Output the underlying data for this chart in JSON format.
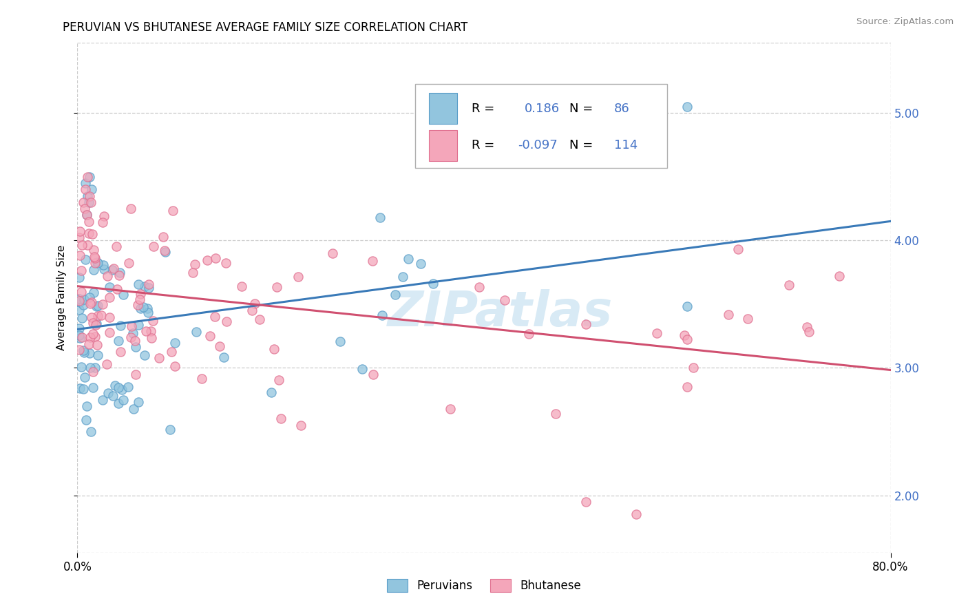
{
  "title": "PERUVIAN VS BHUTANESE AVERAGE FAMILY SIZE CORRELATION CHART",
  "source_text": "Source: ZipAtlas.com",
  "ylabel": "Average Family Size",
  "xlim": [
    0.0,
    0.8
  ],
  "ylim": [
    1.55,
    5.55
  ],
  "yticks": [
    2.0,
    3.0,
    4.0,
    5.0
  ],
  "xticks": [
    0.0,
    0.8
  ],
  "xticklabels": [
    "0.0%",
    "80.0%"
  ],
  "legend_blue_label": "Peruvians",
  "legend_pink_label": "Bhutanese",
  "legend_R_blue": "0.186",
  "legend_N_blue": "86",
  "legend_R_pink": "-0.097",
  "legend_N_pink": "114",
  "blue_color": "#92c5de",
  "pink_color": "#f4a6ba",
  "blue_edge_color": "#5b9ec9",
  "pink_edge_color": "#e07090",
  "line_blue_color": "#3a7ab8",
  "line_pink_color": "#d05070",
  "watermark_color": "#d8eaf5",
  "title_fontsize": 12,
  "axis_fontsize": 11,
  "tick_fontsize": 12,
  "blue_R": 0.186,
  "pink_R": -0.097,
  "blue_N": 86,
  "pink_N": 114,
  "blue_intercept": 3.22,
  "blue_slope": 0.97,
  "pink_intercept": 3.48,
  "pink_slope": -0.18
}
